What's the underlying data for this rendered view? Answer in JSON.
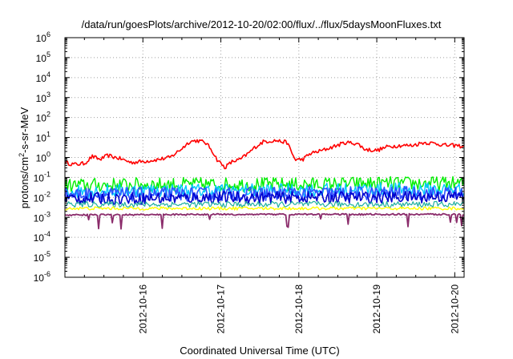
{
  "chart_data": {
    "type": "line",
    "title": "/data/run/goesPlots/archive/2012-10-20/02:00/flux/../flux/5daysMoonFluxes.txt",
    "xlabel": "Coordinated Universal Time (UTC)",
    "ylabel": {
      "base": "protons/cm",
      "sup": "2",
      "rest": "-s-sr-MeV"
    },
    "y_scale": "log",
    "ylim_exponents": [
      -6,
      6
    ],
    "y_tick_base": "10",
    "y_tick_exponents": [
      "-6",
      "-5",
      "-4",
      "-3",
      "-2",
      "-1",
      "0",
      "1",
      "2",
      "3",
      "4",
      "5",
      "6"
    ],
    "x_tick_labels": [
      "2012-10-16",
      "2012-10-17",
      "2012-10-18",
      "2012-10-19",
      "2012-10-20"
    ],
    "x_tick_days": [
      1,
      2,
      3,
      4,
      5
    ],
    "xlim_days": [
      0,
      5.12
    ],
    "x_days_start": "2012-10-15",
    "grid": true,
    "series": [
      {
        "color": "#ff0000",
        "width": 1.6,
        "noise": 0.1,
        "spikes": 0.0,
        "log_points": [
          [
            0.0,
            -0.25
          ],
          [
            0.12,
            -0.35
          ],
          [
            0.25,
            -0.3
          ],
          [
            0.35,
            0.05
          ],
          [
            0.45,
            -0.1
          ],
          [
            0.55,
            0.1
          ],
          [
            0.7,
            -0.05
          ],
          [
            0.85,
            -0.25
          ],
          [
            1.0,
            -0.2
          ],
          [
            1.2,
            -0.1
          ],
          [
            1.35,
            0.0
          ],
          [
            1.5,
            0.45
          ],
          [
            1.6,
            0.8
          ],
          [
            1.7,
            0.85
          ],
          [
            1.8,
            0.75
          ],
          [
            1.88,
            0.4
          ],
          [
            1.95,
            -0.1
          ],
          [
            2.05,
            -0.5
          ],
          [
            2.15,
            -0.2
          ],
          [
            2.25,
            -0.1
          ],
          [
            2.35,
            0.2
          ],
          [
            2.45,
            0.55
          ],
          [
            2.55,
            0.8
          ],
          [
            2.7,
            0.85
          ],
          [
            2.85,
            0.75
          ],
          [
            2.95,
            -0.1
          ],
          [
            3.05,
            -0.1
          ],
          [
            3.15,
            0.2
          ],
          [
            3.3,
            0.35
          ],
          [
            3.45,
            0.55
          ],
          [
            3.6,
            0.75
          ],
          [
            3.75,
            0.7
          ],
          [
            3.85,
            0.4
          ],
          [
            4.0,
            0.35
          ],
          [
            4.15,
            0.55
          ],
          [
            4.3,
            0.6
          ],
          [
            4.45,
            0.6
          ],
          [
            4.6,
            0.75
          ],
          [
            4.75,
            0.7
          ],
          [
            4.9,
            0.6
          ],
          [
            5.0,
            0.6
          ],
          [
            5.12,
            0.55
          ]
        ]
      },
      {
        "color": "#00ee00",
        "width": 1.4,
        "noise": 0.35,
        "spikes": 0.0,
        "log_points": [
          [
            0.0,
            -1.4
          ],
          [
            1.0,
            -1.35
          ],
          [
            2.0,
            -1.35
          ],
          [
            3.0,
            -1.35
          ],
          [
            4.0,
            -1.3
          ],
          [
            5.12,
            -1.3
          ]
        ]
      },
      {
        "color": "#00c8ff",
        "width": 1.4,
        "noise": 0.35,
        "spikes": 0.0,
        "log_points": [
          [
            0.0,
            -1.7
          ],
          [
            1.0,
            -1.65
          ],
          [
            2.0,
            -1.65
          ],
          [
            3.0,
            -1.65
          ],
          [
            4.0,
            -1.6
          ],
          [
            5.12,
            -1.6
          ]
        ]
      },
      {
        "color": "#3050ff",
        "width": 1.6,
        "noise": 0.35,
        "spikes": 0.0,
        "log_points": [
          [
            0.0,
            -1.85
          ],
          [
            1.0,
            -1.85
          ],
          [
            2.0,
            -1.85
          ],
          [
            3.0,
            -1.8
          ],
          [
            4.0,
            -1.8
          ],
          [
            5.12,
            -1.8
          ]
        ]
      },
      {
        "color": "#0000cc",
        "width": 1.6,
        "noise": 0.3,
        "spikes": 0.0,
        "log_points": [
          [
            0.0,
            -2.05
          ],
          [
            1.0,
            -2.05
          ],
          [
            2.0,
            -2.0
          ],
          [
            3.0,
            -2.0
          ],
          [
            4.0,
            -2.0
          ],
          [
            5.12,
            -1.95
          ]
        ]
      },
      {
        "color": "#20b0a0",
        "width": 1.2,
        "noise": 0.15,
        "spikes": 0.0,
        "log_points": [
          [
            0.0,
            -2.35
          ],
          [
            2.5,
            -2.35
          ],
          [
            5.12,
            -2.35
          ]
        ]
      },
      {
        "color": "#ffff00",
        "width": 1.4,
        "noise": 0.08,
        "spikes": 0.0,
        "log_points": [
          [
            0.0,
            -2.55
          ],
          [
            2.5,
            -2.55
          ],
          [
            5.12,
            -2.55
          ]
        ]
      },
      {
        "color": "#8b2c6b",
        "width": 1.8,
        "noise": 0.04,
        "spikes": 0.5,
        "log_points": [
          [
            0.0,
            -2.88
          ],
          [
            2.5,
            -2.85
          ],
          [
            5.12,
            -2.85
          ]
        ]
      }
    ]
  }
}
